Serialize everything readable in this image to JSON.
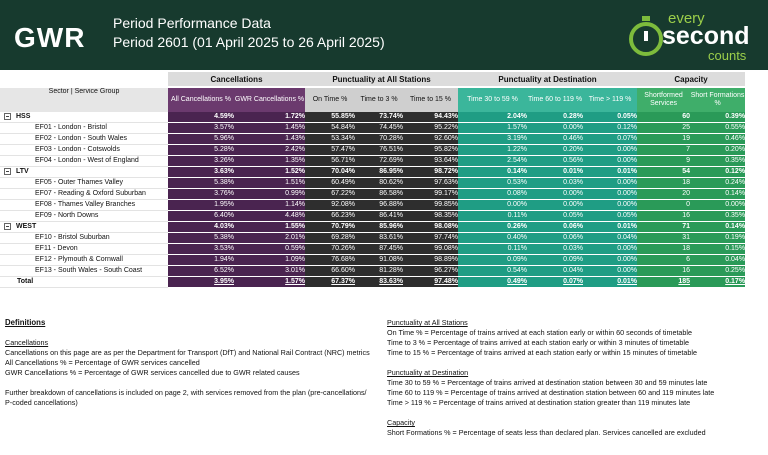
{
  "header": {
    "logo": "GWR",
    "title": "Period Performance Data",
    "subtitle": "Period 2601 (01 April 2025 to 26 April 2025)",
    "brand": [
      "every",
      "second",
      "counts"
    ]
  },
  "table": {
    "corner": "Sector | Service Group",
    "groups": [
      {
        "title": "Cancellations",
        "columns": [
          "All Cancellations %",
          "GWR Cancellations %"
        ]
      },
      {
        "title": "Punctuality at All Stations",
        "columns": [
          "On Time %",
          "Time to 3 %",
          "Time to 15 %"
        ]
      },
      {
        "title": "Punctuality at Destination",
        "columns": [
          "Time 30 to 59 %",
          "Time 60 to 119 %",
          "Time > 119 %"
        ]
      },
      {
        "title": "Capacity",
        "columns": [
          "Shortformed Services",
          "Short Formations %"
        ]
      }
    ],
    "sectors": [
      {
        "name": "HSS",
        "cells": [
          "4.59%",
          "1.72%",
          "55.85%",
          "73.74%",
          "94.43%",
          "2.04%",
          "0.28%",
          "0.05%",
          "60",
          "0.39%"
        ],
        "groups": [
          {
            "name": "EF01 - London - Bristol",
            "cells": [
              "3.57%",
              "1.45%",
              "54.84%",
              "74.45%",
              "95.22%",
              "1.57%",
              "0.00%",
              "0.12%",
              "25",
              "0.55%"
            ]
          },
          {
            "name": "EF02 - London - South Wales",
            "cells": [
              "5.96%",
              "1.43%",
              "53.34%",
              "70.28%",
              "92.60%",
              "3.19%",
              "0.46%",
              "0.07%",
              "19",
              "0.46%"
            ]
          },
          {
            "name": "EF03 - London - Cotswolds",
            "cells": [
              "5.28%",
              "2.42%",
              "57.47%",
              "76.51%",
              "95.82%",
              "1.22%",
              "0.20%",
              "0.00%",
              "7",
              "0.20%"
            ]
          },
          {
            "name": "EF04 - London - West of England",
            "cells": [
              "3.26%",
              "1.35%",
              "56.71%",
              "72.69%",
              "93.64%",
              "2.54%",
              "0.56%",
              "0.00%",
              "9",
              "0.35%"
            ]
          }
        ]
      },
      {
        "name": "LTV",
        "cells": [
          "3.63%",
          "1.52%",
          "70.04%",
          "86.95%",
          "98.72%",
          "0.14%",
          "0.01%",
          "0.01%",
          "54",
          "0.12%"
        ],
        "groups": [
          {
            "name": "EF05 - Outer Thames Valley",
            "cells": [
              "5.38%",
              "1.51%",
              "60.49%",
              "80.62%",
              "97.63%",
              "0.53%",
              "0.03%",
              "0.00%",
              "18",
              "0.24%"
            ]
          },
          {
            "name": "EF07 - Reading & Oxford Suburban",
            "cells": [
              "3.76%",
              "0.99%",
              "67.22%",
              "86.58%",
              "99.17%",
              "0.08%",
              "0.00%",
              "0.00%",
              "20",
              "0.14%"
            ]
          },
          {
            "name": "EF08 - Thames Valley Branches",
            "cells": [
              "1.95%",
              "1.14%",
              "92.08%",
              "96.88%",
              "99.85%",
              "0.00%",
              "0.00%",
              "0.00%",
              "0",
              "0.00%"
            ]
          },
          {
            "name": "EF09 - North Downs",
            "cells": [
              "6.40%",
              "4.48%",
              "66.23%",
              "86.41%",
              "98.35%",
              "0.11%",
              "0.05%",
              "0.05%",
              "16",
              "0.35%"
            ]
          }
        ]
      },
      {
        "name": "WEST",
        "cells": [
          "4.03%",
          "1.55%",
          "70.79%",
          "85.96%",
          "98.08%",
          "0.26%",
          "0.06%",
          "0.01%",
          "71",
          "0.14%"
        ],
        "groups": [
          {
            "name": "EF10 - Bristol Suburban",
            "cells": [
              "5.38%",
              "2.01%",
              "69.28%",
              "83.61%",
              "97.74%",
              "0.40%",
              "0.06%",
              "0.04%",
              "31",
              "0.19%"
            ]
          },
          {
            "name": "EF11 - Devon",
            "cells": [
              "3.53%",
              "0.59%",
              "70.26%",
              "87.45%",
              "99.08%",
              "0.11%",
              "0.03%",
              "0.00%",
              "18",
              "0.15%"
            ]
          },
          {
            "name": "EF12 - Plymouth & Cornwall",
            "cells": [
              "1.94%",
              "1.09%",
              "76.68%",
              "91.08%",
              "98.89%",
              "0.09%",
              "0.09%",
              "0.00%",
              "6",
              "0.04%"
            ]
          },
          {
            "name": "EF13 - South Wales - South Coast",
            "cells": [
              "6.52%",
              "3.01%",
              "66.60%",
              "81.28%",
              "96.27%",
              "0.54%",
              "0.04%",
              "0.00%",
              "16",
              "0.25%"
            ]
          }
        ]
      }
    ],
    "total": {
      "name": "Total",
      "cells": [
        "3.95%",
        "1.57%",
        "67.37%",
        "83.63%",
        "97.48%",
        "0.49%",
        "0.07%",
        "0.01%",
        "185",
        "0.17%"
      ]
    }
  },
  "definitions": {
    "title": "Definitions",
    "sections": [
      {
        "heading": "Cancellations",
        "paragraphs": [
          [
            "Cancellations on this page are as per the Department for Transport (DfT) and National Rail Contract (NRC) metrics",
            "All Cancellations % = Percentage of GWR services cancelled",
            "GWR Cancellations % = Percentage of GWR services cancelled due to GWR related causes"
          ],
          [
            "Further breakdown of cancellations is included on page 2, with services removed from the plan (pre-cancellations/ P-coded cancellations)"
          ]
        ]
      },
      {
        "heading": "Punctuality at All Stations",
        "paragraphs": [
          [
            "On Time % = Percentage of trains arrived at each station early or within 60 seconds of timetable",
            "Time to 3 % = Percentage of trains arrived at each station early or within 3 minutes of timetable",
            "Time to 15 % = Percentage of trains arrived at each station early or within 15 minutes of timetable"
          ]
        ]
      },
      {
        "heading": "Punctuality at Destination",
        "paragraphs": [
          [
            "Time 30 to 59 % = Percentage of trains arrived at destination station between 30 and 59 minutes late",
            "Time 60 to 119 % = Percentage of trains arrived at destination station between 60 and 119 minutes late",
            "Time > 119 % = Percentage of trains arrived at destination station greater than 119 minutes late"
          ]
        ]
      },
      {
        "heading": "Capacity",
        "paragraphs": [
          [
            "Short Formations % = Percentage of seats less than declared plan. Services cancelled are excluded"
          ]
        ]
      }
    ]
  }
}
